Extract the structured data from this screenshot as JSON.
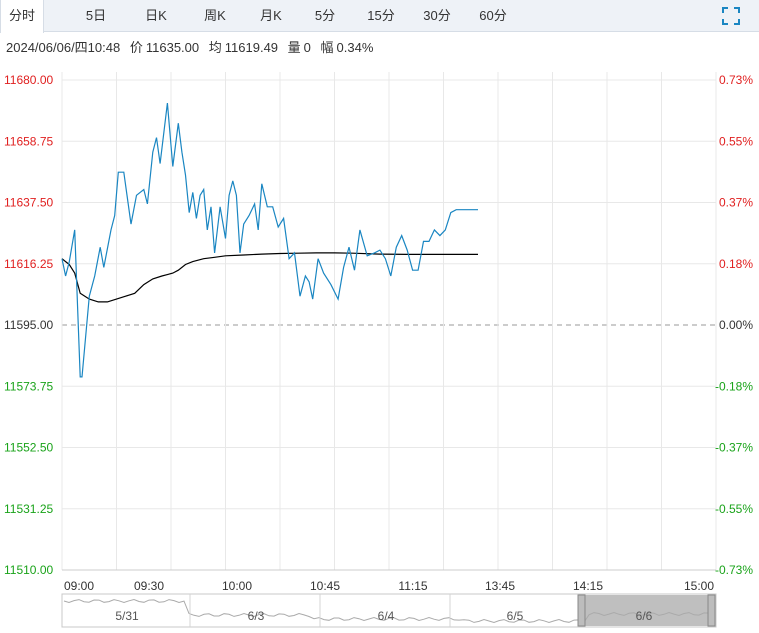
{
  "tabs": [
    {
      "label": "分时",
      "active": true
    },
    {
      "label": "5日",
      "active": false
    },
    {
      "label": "日K",
      "active": false
    },
    {
      "label": "周K",
      "active": false
    },
    {
      "label": "月K",
      "active": false
    },
    {
      "label": "5分",
      "active": false
    },
    {
      "label": "15分",
      "active": false
    },
    {
      "label": "30分",
      "active": false
    },
    {
      "label": "60分",
      "active": false
    }
  ],
  "fullscreen_icon": "expand-icon",
  "info": {
    "datetime": "2024/06/06/四10:48",
    "price_label": "价",
    "price": "11635.00",
    "avg_label": "均",
    "avg": "11619.49",
    "volume_label": "量",
    "volume": "0",
    "change_label": "幅",
    "change": "0.34%"
  },
  "colors": {
    "price_line": "#1a86c2",
    "avg_line": "#000000",
    "up": "#e01f1f",
    "down": "#1aa31a",
    "base": "#333333",
    "grid": "#e8e8e8"
  },
  "chart_data": {
    "type": "line",
    "base_price": 11595.0,
    "ylim": [
      11510.0,
      11680.0
    ],
    "y_ticks": [
      "11680.00",
      "11658.75",
      "11637.50",
      "11616.25",
      "11595.00",
      "11573.75",
      "11552.50",
      "11531.25",
      "11510.00"
    ],
    "y_pct_ticks": [
      "0.73%",
      "0.55%",
      "0.37%",
      "0.18%",
      "0.00%",
      "-0.18%",
      "-0.37%",
      "-0.55%",
      "-0.73%"
    ],
    "x_ticks": [
      "09:00",
      "09:30",
      "10:00",
      "10:45",
      "11:15",
      "13:45",
      "14:15",
      "15:00"
    ],
    "x_unit": "minutes since 09:00 (session slot index, 0-360)",
    "price_series": {
      "x": [
        0,
        2,
        4,
        7,
        10,
        11,
        15,
        18,
        21,
        23,
        27,
        29,
        31,
        34,
        38,
        41,
        45,
        47,
        50,
        52,
        54,
        58,
        61,
        64,
        66,
        68,
        70,
        72,
        74,
        76,
        78,
        80,
        82,
        84,
        87,
        90,
        92,
        94,
        96,
        98,
        100,
        103,
        106,
        108,
        110,
        113,
        116,
        119,
        122,
        125,
        128,
        131,
        134,
        136,
        138,
        141,
        144,
        148,
        152,
        155,
        158,
        161,
        164,
        168,
        172,
        175,
        178,
        181,
        184,
        187,
        190,
        193,
        196,
        199,
        202,
        205,
        208,
        211,
        214,
        217,
        220,
        223,
        226,
        229
      ],
      "y": [
        11618,
        11612,
        11617,
        11628,
        11577,
        11577,
        11605,
        11612,
        11622,
        11615,
        11628,
        11633,
        11648,
        11648,
        11630,
        11640,
        11642,
        11637,
        11655,
        11660,
        11651,
        11672,
        11650,
        11665,
        11655,
        11647,
        11634,
        11641,
        11632,
        11640,
        11642,
        11628,
        11636,
        11620,
        11636,
        11625,
        11640,
        11645,
        11640,
        11620,
        11630,
        11633,
        11637,
        11628,
        11644,
        11636,
        11636,
        11629,
        11632,
        11618,
        11620,
        11605,
        11612,
        11610,
        11604,
        11618,
        11613,
        11609,
        11604,
        11615,
        11622,
        11614,
        11628,
        11619,
        11620,
        11621,
        11618,
        11612,
        11622,
        11626,
        11621,
        11614,
        11614,
        11624,
        11624,
        11628,
        11626,
        11628,
        11634,
        11635,
        11635,
        11635,
        11635,
        11635
      ]
    },
    "avg_series": {
      "x": [
        0,
        2,
        4,
        7,
        10,
        15,
        20,
        25,
        30,
        35,
        40,
        45,
        50,
        55,
        58,
        61,
        64,
        68,
        72,
        78,
        84,
        90,
        100,
        110,
        120,
        130,
        140,
        150,
        160,
        175,
        190,
        205,
        220,
        229
      ],
      "y": [
        11618,
        11617,
        11616,
        11613,
        11606,
        11604,
        11603,
        11603,
        11604,
        11605,
        11606,
        11609,
        11611,
        11612,
        11612.5,
        11613,
        11614,
        11616,
        11617,
        11618,
        11618.5,
        11619,
        11619.3,
        11619.6,
        11619.8,
        11619.9,
        11620,
        11620,
        11619.9,
        11619.6,
        11619.5,
        11619.5,
        11619.5,
        11619.49
      ]
    }
  },
  "navigator": {
    "dates": [
      "5/31",
      "6/3",
      "6/4",
      "6/5",
      "6/6"
    ]
  }
}
